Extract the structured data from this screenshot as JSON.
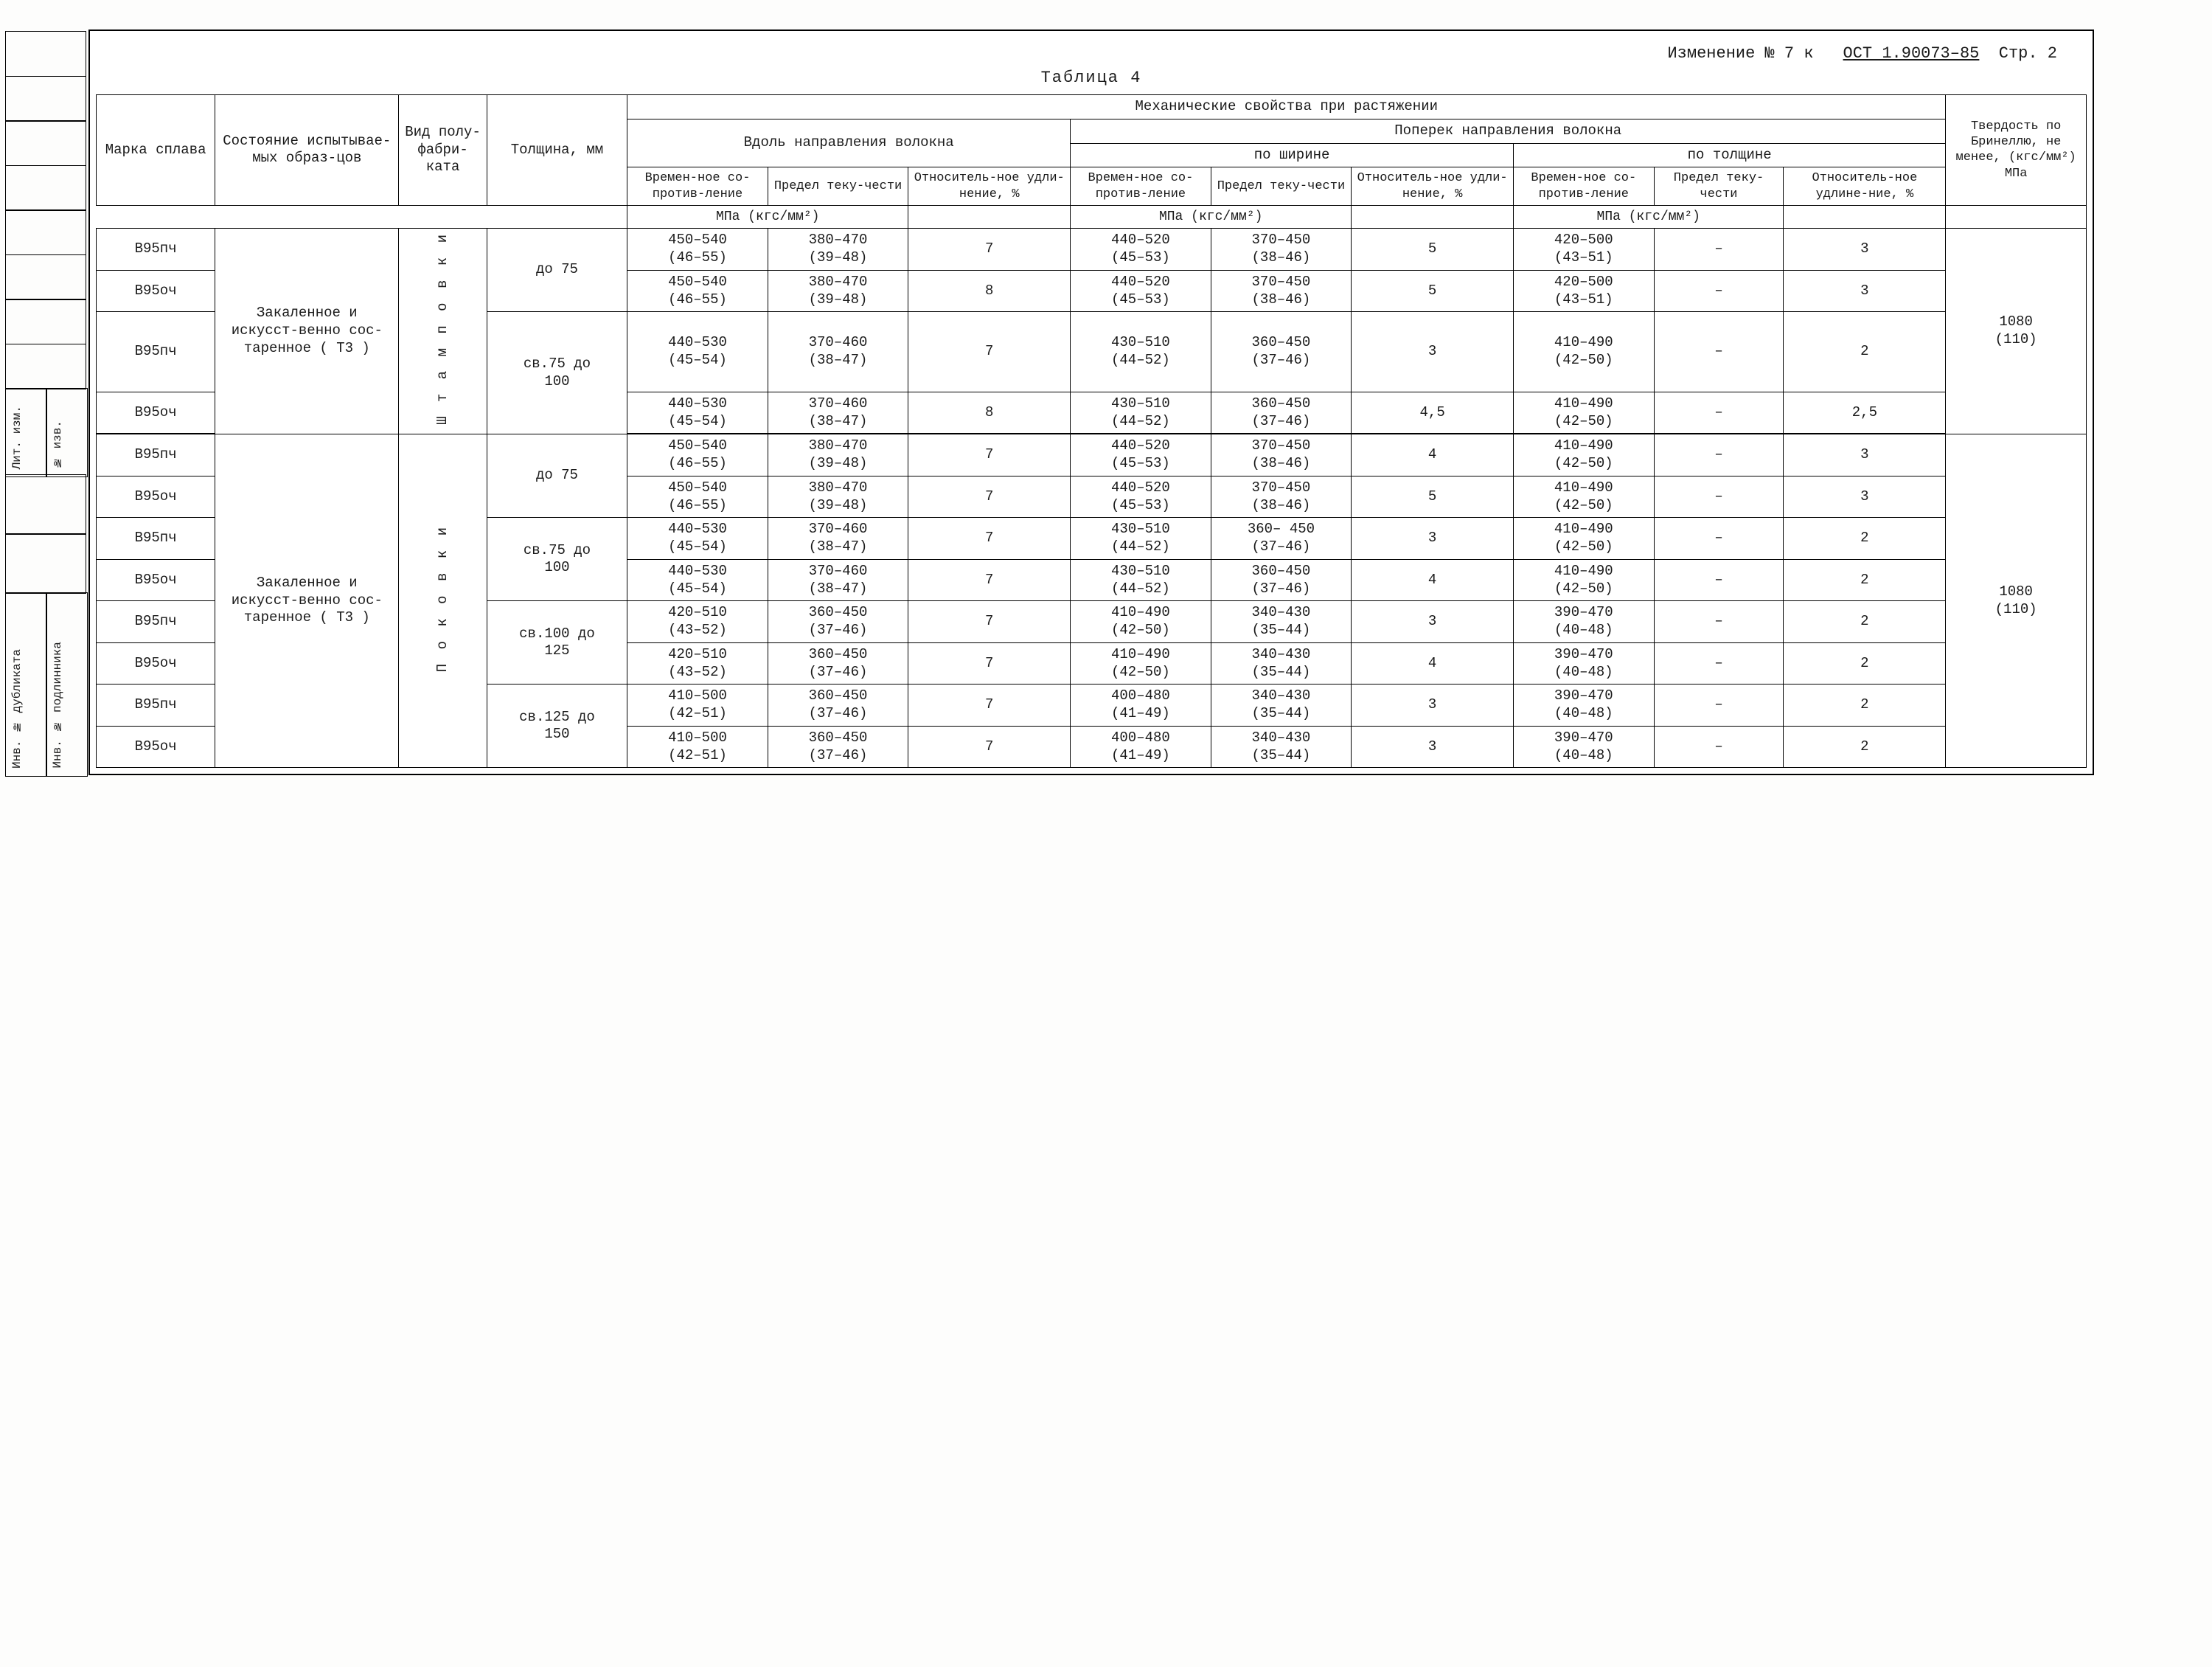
{
  "header": {
    "change": "Изменение № 7  к",
    "ost": "ОСТ 1.90073–85",
    "page": "Стр. 2",
    "table_label": "Таблица  4"
  },
  "cols": {
    "mark": "Марка сплава",
    "state": "Состояние испытывае-мых образ-цов",
    "form": "Вид полу-фабри-ката",
    "thk": "Толщина, мм",
    "mech": "Механические  свойства  при  растяжении",
    "along": "Вдоль направления волокна",
    "across": "Поперек направления волокна",
    "width": "по ширине",
    "thick": "по толщине",
    "ts": "Времен-ное со-против-ление",
    "ys": "Предел теку-чести",
    "el": "Относитель-ное удли-нение, %",
    "el2": "Относитель-ное удлине-ние, %",
    "unit": "МПа (кгс/мм²)",
    "hard": "Твердость по Бринеллю, не менее, (кгс/мм²) МПа"
  },
  "forms": {
    "stamp": "Ш т а м п о в к и",
    "forge": "П о к о в к и"
  },
  "states": {
    "t3": "Закаленное и искусст-венно сос-таренное ( Т3 )"
  },
  "rows": [
    {
      "mark": "В95пч",
      "thk": "до 75",
      "a_ts": "450–540",
      "a_ts_k": "(46–55)",
      "a_ys": "380–470",
      "a_ys_k": "(39–48)",
      "a_el": "7",
      "w_ts": "440–520",
      "w_ts_k": "(45–53)",
      "w_ys": "370–450",
      "w_ys_k": "(38–46)",
      "w_el": "5",
      "t_ts": "420–500",
      "t_ts_k": "(43–51)",
      "t_ys": "–",
      "t_el": "3",
      "hb": "1080 (110)"
    },
    {
      "mark": "В95оч",
      "thk": "",
      "a_ts": "450–540",
      "a_ts_k": "(46–55)",
      "a_ys": "380–470",
      "a_ys_k": "(39–48)",
      "a_el": "8",
      "w_ts": "440–520",
      "w_ts_k": "(45–53)",
      "w_ys": "370–450",
      "w_ys_k": "(38–46)",
      "w_el": "5",
      "t_ts": "420–500",
      "t_ts_k": "(43–51)",
      "t_ys": "–",
      "t_el": "3",
      "hb": ""
    },
    {
      "mark": "В95пч",
      "thk": "св.75 до 100",
      "a_ts": "440–530",
      "a_ts_k": "(45–54)",
      "a_ys": "370–460",
      "a_ys_k": "(38–47)",
      "a_el": "7",
      "w_ts": "430–510",
      "w_ts_k": "(44–52)",
      "w_ys": "360–450",
      "w_ys_k": "(37–46)",
      "w_el": "3",
      "t_ts": "410–490",
      "t_ts_k": "(42–50)",
      "t_ys": "–",
      "t_el": "2",
      "hb": ""
    },
    {
      "mark": "В95оч",
      "thk": "",
      "a_ts": "440–530",
      "a_ts_k": "(45–54)",
      "a_ys": "370–460",
      "a_ys_k": "(38–47)",
      "a_el": "8",
      "w_ts": "430–510",
      "w_ts_k": "(44–52)",
      "w_ys": "360–450",
      "w_ys_k": "(37–46)",
      "w_el": "4,5",
      "t_ts": "410–490",
      "t_ts_k": "(42–50)",
      "t_ys": "–",
      "t_el": "2,5",
      "hb": ""
    },
    {
      "mark": "В95пч",
      "thk": "до 75",
      "a_ts": "450–540",
      "a_ts_k": "(46–55)",
      "a_ys": "380–470",
      "a_ys_k": "(39–48)",
      "a_el": "7",
      "w_ts": "440–520",
      "w_ts_k": "(45–53)",
      "w_ys": "370–450",
      "w_ys_k": "(38–46)",
      "w_el": "4",
      "t_ts": "410–490",
      "t_ts_k": "(42–50)",
      "t_ys": "–",
      "t_el": "3",
      "hb": "1080 (110)"
    },
    {
      "mark": "В95оч",
      "thk": "",
      "a_ts": "450–540",
      "a_ts_k": "(46–55)",
      "a_ys": "380–470",
      "a_ys_k": "(39–48)",
      "a_el": "7",
      "w_ts": "440–520",
      "w_ts_k": "(45–53)",
      "w_ys": "370–450",
      "w_ys_k": "(38–46)",
      "w_el": "5",
      "t_ts": "410–490",
      "t_ts_k": "(42–50)",
      "t_ys": "–",
      "t_el": "3",
      "hb": ""
    },
    {
      "mark": "В95пч",
      "thk": "св.75 до 100",
      "a_ts": "440–530",
      "a_ts_k": "(45–54)",
      "a_ys": "370–460",
      "a_ys_k": "(38–47)",
      "a_el": "7",
      "w_ts": "430–510",
      "w_ts_k": "(44–52)",
      "w_ys": "360– 450",
      "w_ys_k": "(37–46)",
      "w_el": "3",
      "t_ts": "410–490",
      "t_ts_k": "(42–50)",
      "t_ys": "–",
      "t_el": "2",
      "hb": ""
    },
    {
      "mark": "В95оч",
      "thk": "",
      "a_ts": "440–530",
      "a_ts_k": "(45–54)",
      "a_ys": "370–460",
      "a_ys_k": "(38–47)",
      "a_el": "7",
      "w_ts": "430–510",
      "w_ts_k": "(44–52)",
      "w_ys": "360–450",
      "w_ys_k": "(37–46)",
      "w_el": "4",
      "t_ts": "410–490",
      "t_ts_k": "(42–50)",
      "t_ys": "–",
      "t_el": "2",
      "hb": ""
    },
    {
      "mark": "В95пч",
      "thk": "св.100 до 125",
      "a_ts": "420–510",
      "a_ts_k": "(43–52)",
      "a_ys": "360–450",
      "a_ys_k": "(37–46)",
      "a_el": "7",
      "w_ts": "410–490",
      "w_ts_k": "(42–50)",
      "w_ys": "340–430",
      "w_ys_k": "(35–44)",
      "w_el": "3",
      "t_ts": "390–470",
      "t_ts_k": "(40–48)",
      "t_ys": "–",
      "t_el": "2",
      "hb": ""
    },
    {
      "mark": "В95оч",
      "thk": "",
      "a_ts": "420–510",
      "a_ts_k": "(43–52)",
      "a_ys": "360–450",
      "a_ys_k": "(37–46)",
      "a_el": "7",
      "w_ts": "410–490",
      "w_ts_k": "(42–50)",
      "w_ys": "340–430",
      "w_ys_k": "(35–44)",
      "w_el": "4",
      "t_ts": "390–470",
      "t_ts_k": "(40–48)",
      "t_ys": "–",
      "t_el": "2",
      "hb": ""
    },
    {
      "mark": "В95пч",
      "thk": "св.125 до 150",
      "a_ts": "410–500",
      "a_ts_k": "(42–51)",
      "a_ys": "360–450",
      "a_ys_k": "(37–46)",
      "a_el": "7",
      "w_ts": "400–480",
      "w_ts_k": "(41–49)",
      "w_ys": "340–430",
      "w_ys_k": "(35–44)",
      "w_el": "3",
      "t_ts": "390–470",
      "t_ts_k": "(40–48)",
      "t_ys": "–",
      "t_el": "2",
      "hb": ""
    },
    {
      "mark": "В95оч",
      "thk": "",
      "a_ts": "410–500",
      "a_ts_k": "(42–51)",
      "a_ys": "360–450",
      "a_ys_k": "(37–46)",
      "a_el": "7",
      "w_ts": "400–480",
      "w_ts_k": "(41–49)",
      "w_ys": "340–430",
      "w_ys_k": "(35–44)",
      "w_el": "3",
      "t_ts": "390–470",
      "t_ts_k": "(40–48)",
      "t_ys": "–",
      "t_el": "2",
      "hb": ""
    }
  ],
  "stub": {
    "inv_dup": "Инв. № дубликата",
    "inv_pod": "Инв. № подлинника",
    "lit": "Лит. изм.",
    "izv": "№ изв."
  },
  "style": {
    "font": "Courier New",
    "text_color": "#1a1a1a",
    "border_color": "#000000",
    "bg": "#ffffff",
    "font_size_body": 19,
    "font_size_header": 22
  }
}
